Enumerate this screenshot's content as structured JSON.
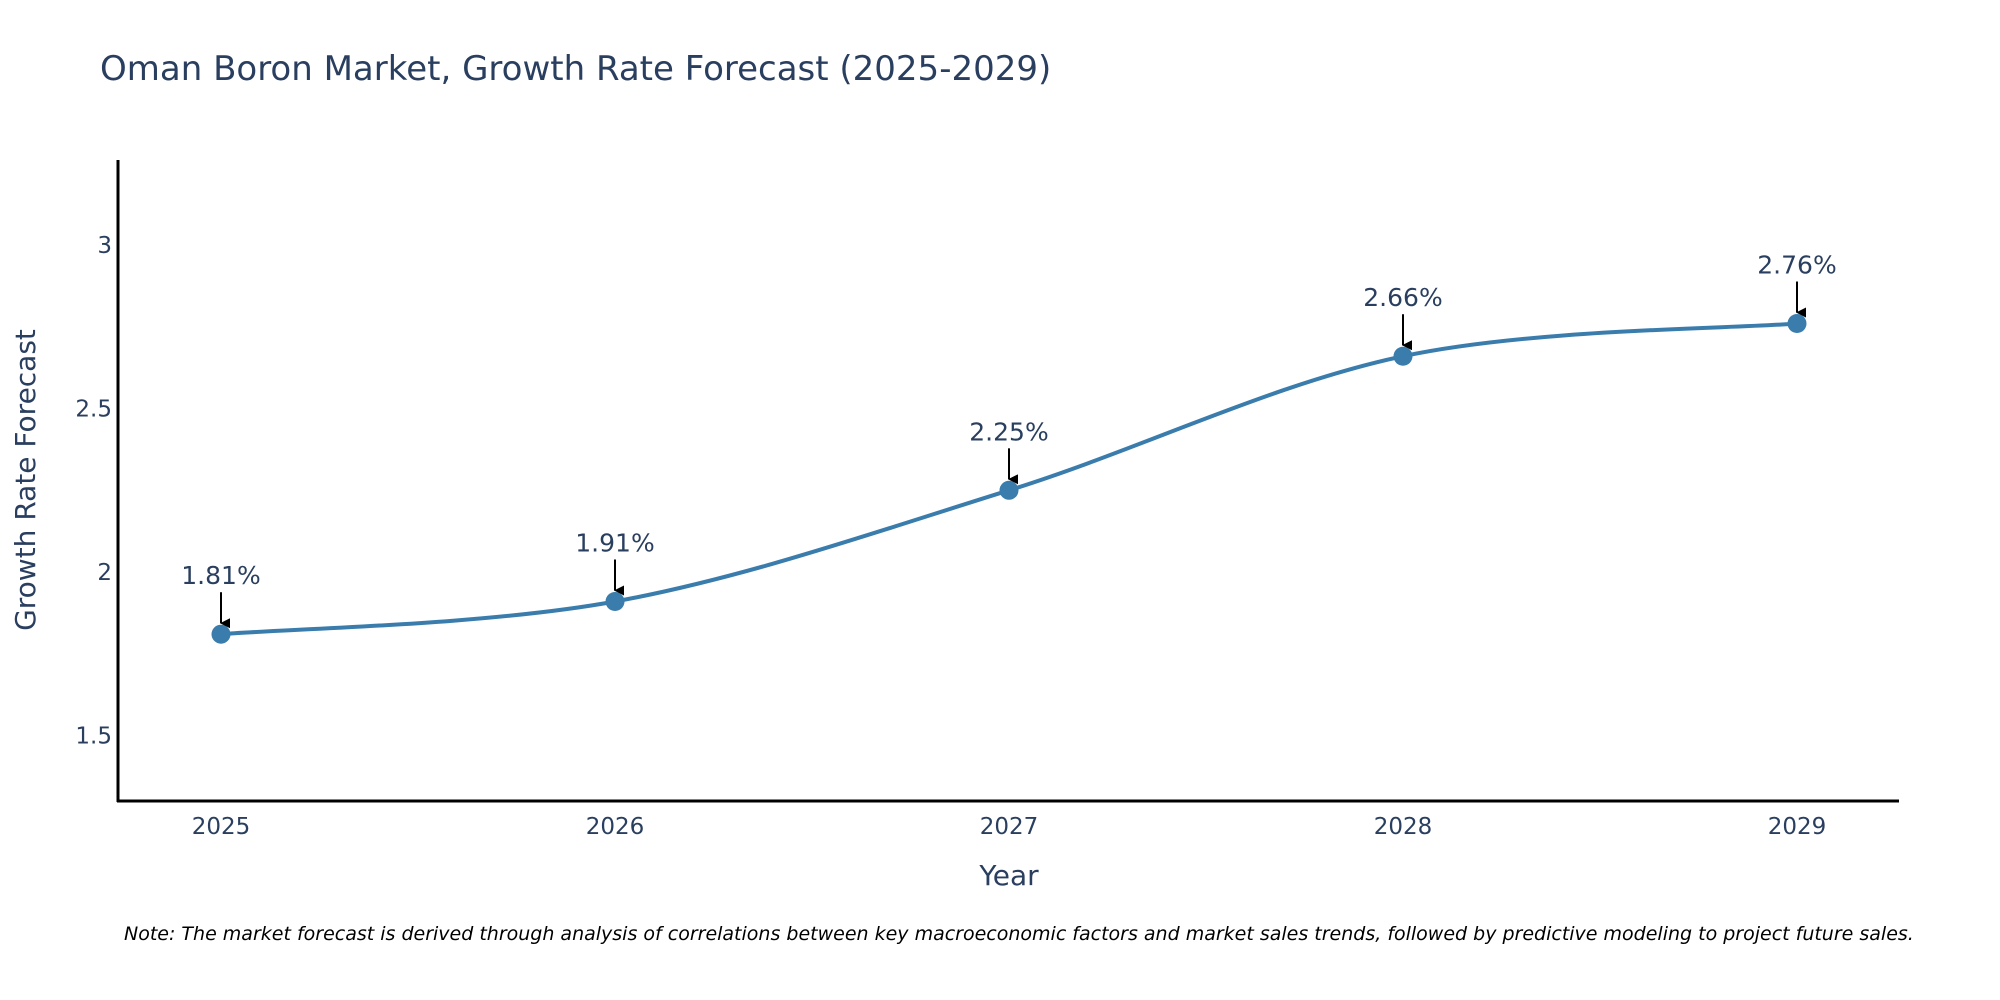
{
  "chart_data": {
    "type": "line",
    "title": "Oman Boron Market, Growth Rate Forecast (2025-2029)",
    "xlabel": "Year",
    "ylabel": "Growth Rate Forecast",
    "categories": [
      "2025",
      "2026",
      "2027",
      "2028",
      "2029"
    ],
    "series": [
      {
        "name": "Growth Rate Forecast",
        "values": [
          1.81,
          1.91,
          2.25,
          2.66,
          2.76
        ],
        "labels": [
          "1.81%",
          "1.91%",
          "2.25%",
          "2.66%",
          "2.76%"
        ]
      }
    ],
    "ylim": [
      1.3,
      3.26
    ],
    "yticks": [
      1.5,
      2,
      2.5,
      3
    ],
    "ytick_labels": [
      "1.5",
      "2",
      "2.5",
      "3"
    ],
    "grid": false,
    "legend": "none",
    "line_color": "#3a7dad",
    "marker_color": "#3a7dad",
    "line_shape": "spline",
    "annotation_arrows": true
  },
  "note": "Note: The market forecast is derived through analysis of correlations between key macroeconomic factors and market sales trends, followed by predictive modeling to project future sales."
}
